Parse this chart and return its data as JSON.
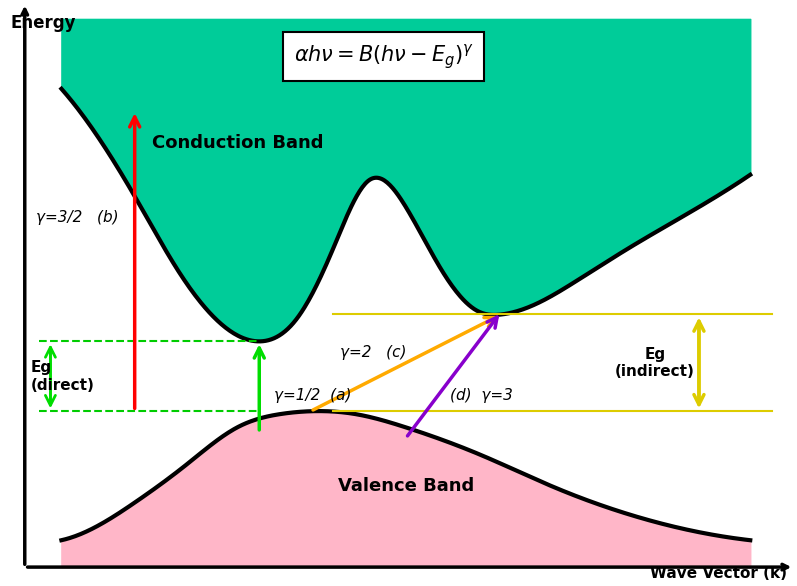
{
  "bg_color": "#ffffff",
  "conduction_band_color": "#00cc99",
  "valence_band_color": "#ffb6c8",
  "band_edge_color": "#000000",
  "ylabel": "Energy",
  "xlabel": "Wave Vector (k)",
  "arrow_red_color": "#ff0000",
  "arrow_green_color": "#00dd00",
  "arrow_orange_color": "#ffaa00",
  "arrow_purple_color": "#8800cc",
  "dashed_line_color": "#00cc00",
  "yellow_line_color": "#ddcc00",
  "Eg_direct_label": "Eg\n(direct)",
  "Eg_indirect_label": "Eg\n(indirect)",
  "conduction_band_label": "Conduction Band",
  "valence_band_label": "Valence Band",
  "gamma_a": "γ=1/2  (a)",
  "gamma_b": "γ=3/2   (b)",
  "gamma_c": "γ=2   (c)",
  "gamma_d": "(d)  γ=3",
  "title_formula": "$\\alpha h\\nu = B(h\\nu - E_g)^{\\gamma}$"
}
